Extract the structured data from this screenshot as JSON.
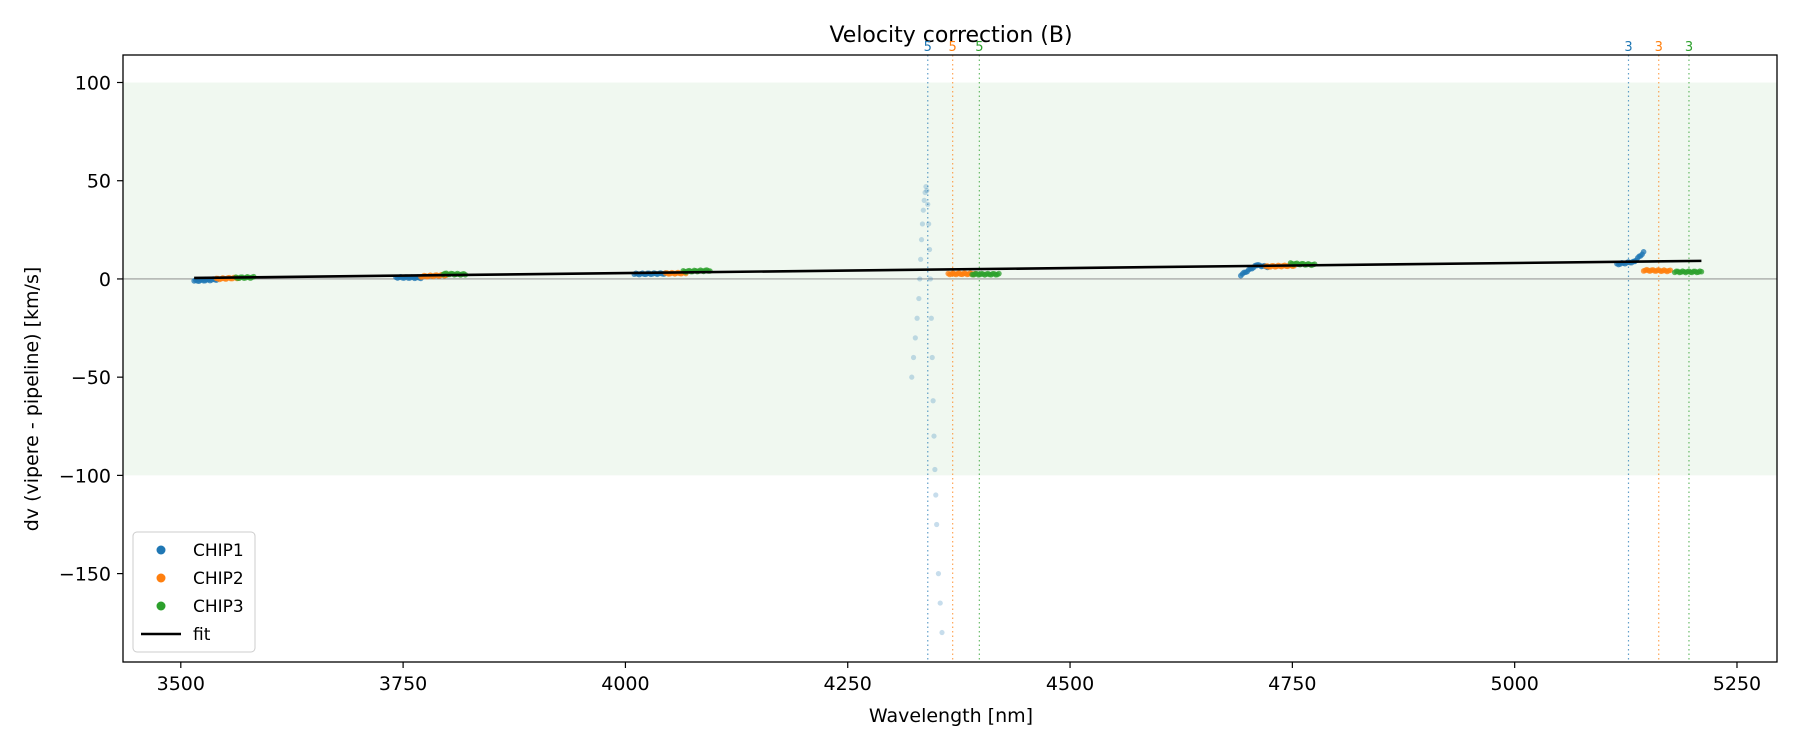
{
  "chart_data": {
    "type": "scatter",
    "title": "Velocity correction (B)",
    "xlabel": "Wavelength [nm]",
    "ylabel": "dv (vipere - pipeline) [km/s]",
    "xlim": [
      3435,
      5295
    ],
    "ylim": [
      -195,
      114
    ],
    "xticks": [
      3500,
      3750,
      4000,
      4250,
      4500,
      4750,
      5000,
      5250
    ],
    "yticks": [
      -150,
      -100,
      -50,
      0,
      50,
      100
    ],
    "band": {
      "y0": -100,
      "y1": 100,
      "color": "#e8f4e8"
    },
    "zero_line": 0,
    "colors": {
      "CHIP1": "#1f77b4",
      "CHIP2": "#ff7f0e",
      "CHIP3": "#2ca02c",
      "fit": "#000000"
    },
    "legend": {
      "position": "lower-left",
      "entries": [
        "CHIP1",
        "CHIP2",
        "CHIP3",
        "fit"
      ]
    },
    "fit": {
      "x": [
        3515,
        5210
      ],
      "y": [
        0.5,
        9.2
      ]
    },
    "segments": [
      {
        "series": "CHIP1",
        "x0": 3515,
        "x1": 3540,
        "y0": -1.0,
        "y1": -0.3
      },
      {
        "series": "CHIP2",
        "x0": 3540,
        "x1": 3565,
        "y0": 0.0,
        "y1": 0.6
      },
      {
        "series": "CHIP3",
        "x0": 3562,
        "x1": 3582,
        "y0": 0.6,
        "y1": 0.8
      },
      {
        "series": "CHIP1",
        "x0": 3742,
        "x1": 3770,
        "y0": 0.8,
        "y1": 0.6
      },
      {
        "series": "CHIP2",
        "x0": 3770,
        "x1": 3800,
        "y0": 1.3,
        "y1": 2.0
      },
      {
        "series": "CHIP3",
        "x0": 3795,
        "x1": 3820,
        "y0": 2.6,
        "y1": 2.3
      },
      {
        "series": "CHIP1",
        "x0": 4010,
        "x1": 4045,
        "y0": 2.5,
        "y1": 2.8
      },
      {
        "series": "CHIP2",
        "x0": 4045,
        "x1": 4068,
        "y0": 2.8,
        "y1": 3.0
      },
      {
        "series": "CHIP3",
        "x0": 4065,
        "x1": 4095,
        "y0": 3.8,
        "y1": 4.3
      },
      {
        "series": "CHIP2",
        "x0": 4363,
        "x1": 4393,
        "y0": 2.6,
        "y1": 2.6
      },
      {
        "series": "CHIP3",
        "x0": 4390,
        "x1": 4420,
        "y0": 2.4,
        "y1": 2.4
      },
      {
        "series": "CHIP1",
        "x0": 4692,
        "x1": 4710,
        "y0": 2.0,
        "y1": 7.0
      },
      {
        "series": "CHIP1",
        "x0": 4710,
        "x1": 4722,
        "y0": 7.0,
        "y1": 6.2
      },
      {
        "series": "CHIP2",
        "x0": 4720,
        "x1": 4752,
        "y0": 6.3,
        "y1": 6.8
      },
      {
        "series": "CHIP3",
        "x0": 4748,
        "x1": 4775,
        "y0": 7.8,
        "y1": 7.2
      },
      {
        "series": "CHIP1",
        "x0": 5115,
        "x1": 5135,
        "y0": 7.5,
        "y1": 8.8
      },
      {
        "series": "CHIP1",
        "x0": 5135,
        "x1": 5145,
        "y0": 9.0,
        "y1": 13.5
      },
      {
        "series": "CHIP2",
        "x0": 5145,
        "x1": 5175,
        "y0": 4.4,
        "y1": 4.1
      },
      {
        "series": "CHIP3",
        "x0": 5180,
        "x1": 5210,
        "y0": 3.6,
        "y1": 3.6
      }
    ],
    "outliers": {
      "series": "CHIP1",
      "x": [
        4322,
        4324,
        4326,
        4328,
        4330,
        4331,
        4332,
        4333,
        4334,
        4335,
        4336,
        4337,
        4338,
        4339,
        4340,
        4341,
        4342,
        4343,
        4344,
        4345,
        4346,
        4347,
        4348,
        4349,
        4350
      ],
      "y": [
        -50,
        -40,
        -30,
        -20,
        -10,
        0,
        10,
        20,
        28,
        35,
        40,
        44,
        47,
        45,
        38,
        28,
        15,
        0,
        -20,
        -40,
        -62,
        -80,
        -97,
        -110,
        -125
      ]
    },
    "outliers_extra": {
      "series": "CHIP1",
      "x": [
        4352,
        4354
      ],
      "y": [
        -150,
        -165
      ]
    },
    "outlier_bottom": {
      "series": "CHIP1",
      "x": 4356,
      "y": -180
    },
    "vlines": [
      {
        "series": "CHIP1",
        "x": 4340,
        "label": "5"
      },
      {
        "series": "CHIP2",
        "x": 4368,
        "label": "5"
      },
      {
        "series": "CHIP3",
        "x": 4398,
        "label": "5"
      },
      {
        "series": "CHIP1",
        "x": 5128,
        "label": "3"
      },
      {
        "series": "CHIP2",
        "x": 5162,
        "label": "3"
      },
      {
        "series": "CHIP3",
        "x": 5196,
        "label": "3"
      }
    ]
  }
}
